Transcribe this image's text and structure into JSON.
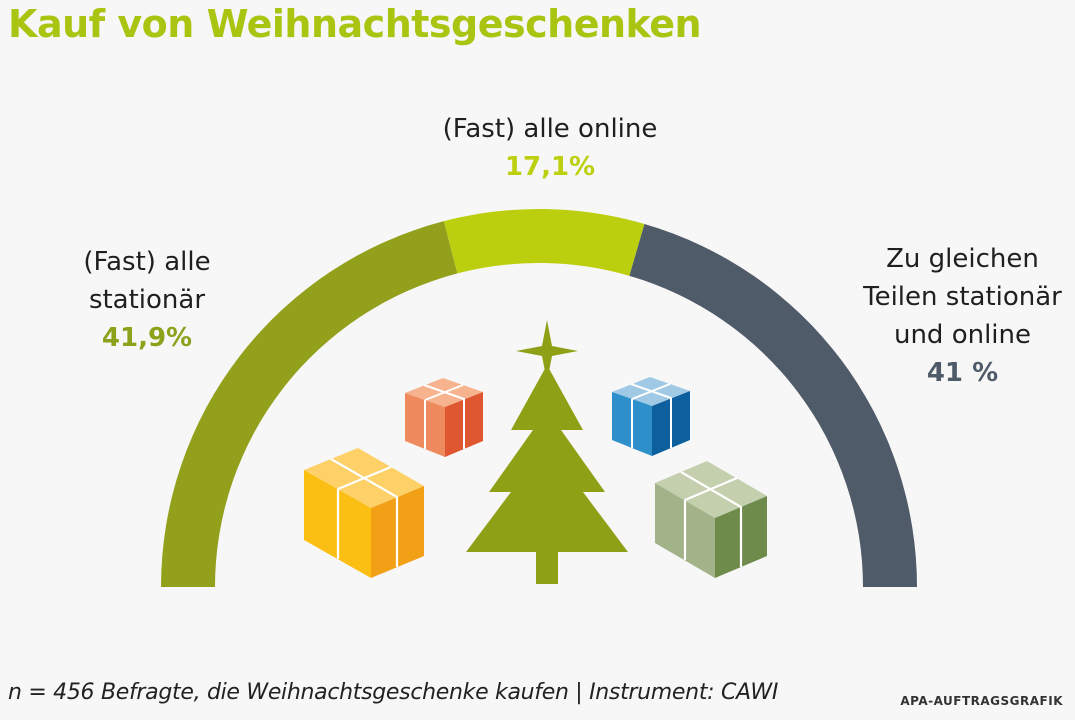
{
  "title": "Kauf von Weihnachtsgeschenken",
  "chart_data": {
    "type": "pie",
    "shape": "semicircle-donut",
    "slices": [
      {
        "label_line1": "(Fast) alle",
        "label_line2": "stationär",
        "value": 41.9,
        "value_text": "41,9%",
        "color": "#93a01c"
      },
      {
        "label_line1": "(Fast) alle online",
        "value": 17.1,
        "value_text": "17,1%",
        "color": "#bccf0f"
      },
      {
        "label_line1": "Zu gleichen",
        "label_line2": "Teilen stationär",
        "label_line3": "und online",
        "value": 41,
        "value_text": "41 %",
        "color": "#4f5b69"
      }
    ]
  },
  "illustration": {
    "tree_color": "#8ea016",
    "gifts": [
      "orange-gift-icon",
      "blue-gift-icon",
      "yellow-gift-icon",
      "green-gift-icon"
    ]
  },
  "footer": {
    "source": "n = 456 Befragte, die Weihnachtsgeschenke kaufen | Instrument: CAWI",
    "credit": "APA-AUFTRAGSGRAFIK"
  }
}
